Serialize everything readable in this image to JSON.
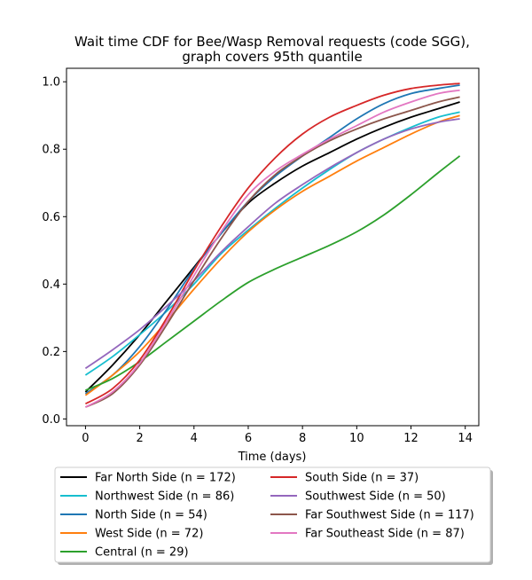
{
  "chart_data": {
    "type": "line",
    "title_line1": "Wait time CDF for Bee/Wasp Removal  requests (code SGG),",
    "title_line2": "graph covers 95th quantile",
    "xlabel": "Time (days)",
    "ylabel": "",
    "xlim": [
      -0.7,
      14.5
    ],
    "ylim": [
      -0.02,
      1.04
    ],
    "x_ticks": [
      0,
      2,
      4,
      6,
      8,
      10,
      12,
      14
    ],
    "y_ticks": [
      0.0,
      0.2,
      0.4,
      0.6,
      0.8,
      1.0
    ],
    "x_tick_labels": [
      "0",
      "2",
      "4",
      "6",
      "8",
      "10",
      "12",
      "14"
    ],
    "y_tick_labels": [
      "0.0",
      "0.2",
      "0.4",
      "0.6",
      "0.8",
      "1.0"
    ],
    "grid": false,
    "legend_placement": "below-plot",
    "x": [
      0,
      1,
      2,
      3,
      4,
      5,
      6,
      7,
      8,
      9,
      10,
      11,
      12,
      13,
      13.8
    ],
    "series": [
      {
        "name": "Far North Side (n = 172)",
        "color": "#000000",
        "values": [
          0.08,
          0.16,
          0.25,
          0.35,
          0.45,
          0.55,
          0.64,
          0.7,
          0.75,
          0.79,
          0.83,
          0.865,
          0.895,
          0.92,
          0.94
        ]
      },
      {
        "name": "Northwest Side (n = 86)",
        "color": "#17becf",
        "values": [
          0.13,
          0.185,
          0.25,
          0.32,
          0.4,
          0.49,
          0.56,
          0.625,
          0.685,
          0.74,
          0.79,
          0.83,
          0.865,
          0.895,
          0.91
        ]
      },
      {
        "name": "North Side (n = 54)",
        "color": "#1f77b4",
        "values": [
          0.075,
          0.13,
          0.215,
          0.325,
          0.445,
          0.55,
          0.645,
          0.72,
          0.78,
          0.835,
          0.89,
          0.935,
          0.965,
          0.98,
          0.99
        ]
      },
      {
        "name": "West Side (n = 72)",
        "color": "#ff7f0e",
        "values": [
          0.07,
          0.13,
          0.2,
          0.29,
          0.385,
          0.475,
          0.555,
          0.62,
          0.675,
          0.72,
          0.765,
          0.805,
          0.845,
          0.88,
          0.9
        ]
      },
      {
        "name": "Central (n = 29)",
        "color": "#2ca02c",
        "values": [
          0.085,
          0.12,
          0.17,
          0.23,
          0.29,
          0.35,
          0.405,
          0.445,
          0.48,
          0.515,
          0.555,
          0.605,
          0.665,
          0.73,
          0.78
        ]
      },
      {
        "name": "South Side (n = 37)",
        "color": "#d62728",
        "values": [
          0.045,
          0.09,
          0.175,
          0.3,
          0.44,
          0.57,
          0.685,
          0.775,
          0.845,
          0.895,
          0.93,
          0.96,
          0.98,
          0.99,
          0.995
        ]
      },
      {
        "name": "Southwest Side (n = 50)",
        "color": "#9467bd",
        "values": [
          0.15,
          0.205,
          0.265,
          0.335,
          0.41,
          0.495,
          0.57,
          0.64,
          0.695,
          0.745,
          0.79,
          0.83,
          0.86,
          0.88,
          0.89
        ]
      },
      {
        "name": "Far Southwest Side (n = 117)",
        "color": "#8c564b",
        "values": [
          0.035,
          0.075,
          0.16,
          0.28,
          0.41,
          0.535,
          0.645,
          0.725,
          0.78,
          0.825,
          0.86,
          0.89,
          0.915,
          0.94,
          0.955
        ]
      },
      {
        "name": "Far Southeast Side (n = 87)",
        "color": "#e377c2",
        "values": [
          0.035,
          0.08,
          0.165,
          0.29,
          0.425,
          0.555,
          0.665,
          0.735,
          0.785,
          0.83,
          0.87,
          0.91,
          0.94,
          0.965,
          0.975
        ]
      }
    ]
  }
}
